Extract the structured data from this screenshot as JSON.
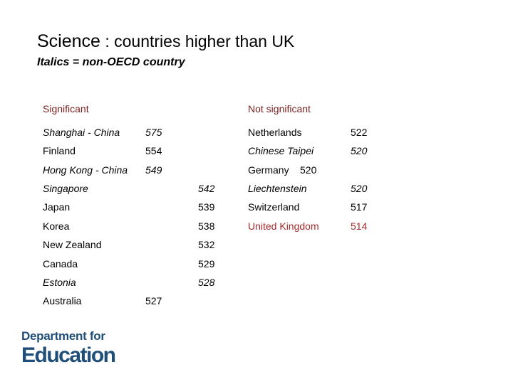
{
  "title": {
    "main": "Science",
    "rest": " : countries higher than UK",
    "subtitle": "Italics = non-OECD country"
  },
  "headers": {
    "significant": "Significant",
    "not_significant": "Not significant"
  },
  "significant": [
    {
      "country": "Shanghai - China",
      "score": "575",
      "italic": true
    },
    {
      "country": "Finland",
      "score": "554",
      "italic": false
    },
    {
      "country": "Hong Kong - China",
      "score": "549",
      "italic": true
    },
    {
      "country": "Singapore",
      "score": "542",
      "italic": true
    },
    {
      "country": "Japan",
      "score": "539",
      "italic": false
    },
    {
      "country": "Korea",
      "score": "538",
      "italic": false
    },
    {
      "country": "New Zealand",
      "score": "532",
      "italic": false
    },
    {
      "country": "Canada",
      "score": "529",
      "italic": false
    },
    {
      "country": "Estonia",
      "score": "528",
      "italic": true
    },
    {
      "country": "Australia",
      "score": "527",
      "italic": false
    }
  ],
  "not_significant": [
    {
      "country": "Netherlands",
      "score": "522",
      "italic": false
    },
    {
      "country": "Chinese Taipei",
      "score": "520",
      "italic": true
    },
    {
      "country": "Germany",
      "score": "520",
      "italic": false
    },
    {
      "country": "Liechtenstein",
      "score": "520",
      "italic": true
    },
    {
      "country": "Switzerland",
      "score": "517",
      "italic": false
    },
    {
      "country": "United Kingdom",
      "score": "514",
      "italic": false,
      "highlight": true
    }
  ],
  "logo": {
    "line1": "Department for",
    "line2": "Education"
  },
  "colors": {
    "header_text": "#7a1f1f",
    "uk_highlight": "#a52a2a",
    "logo": "#1f4e79"
  }
}
